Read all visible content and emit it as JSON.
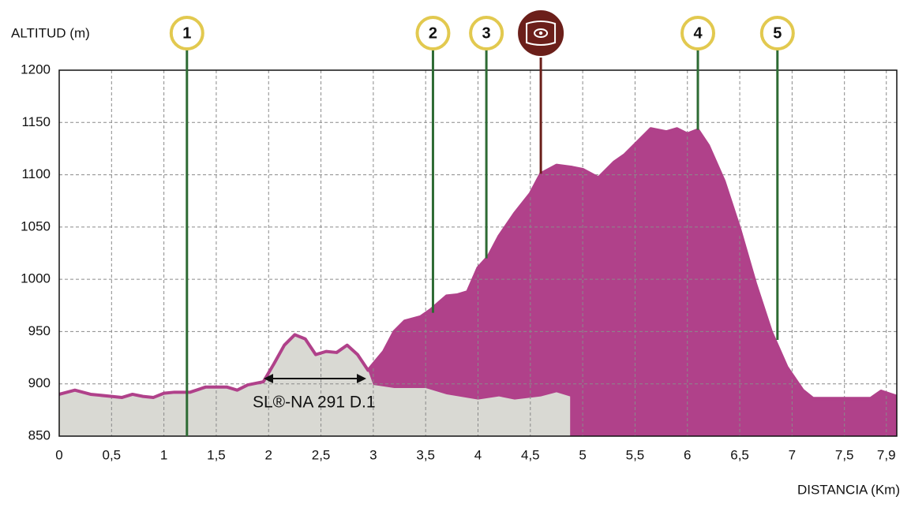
{
  "chart_data": {
    "type": "area",
    "ylabel": "ALTITUD (m)",
    "xlabel": "DISTANCIA (Km)",
    "xlim": [
      0,
      8
    ],
    "ylim": [
      850,
      1200
    ],
    "xticks": [
      0,
      {
        "value": 0.5,
        "label": "0,5"
      },
      1,
      {
        "value": 1.5,
        "label": "1,5"
      },
      2,
      {
        "value": 2.5,
        "label": "2,5"
      },
      3,
      {
        "value": 3.5,
        "label": "3,5"
      },
      4,
      {
        "value": 4.5,
        "label": "4,5"
      },
      5,
      {
        "value": 5.5,
        "label": "5,5"
      },
      6,
      {
        "value": 6.5,
        "label": "6,5"
      },
      7,
      {
        "value": 7.5,
        "label": "7,5"
      },
      {
        "value": 7.9,
        "label": "7,9"
      }
    ],
    "yticks": [
      850,
      900,
      950,
      1000,
      1050,
      1100,
      1150,
      1200
    ],
    "grid": true,
    "series": [
      {
        "color": "#b0418a",
        "x": [
          0,
          0.15,
          0.3,
          0.5,
          0.6,
          0.7,
          0.8,
          0.9,
          1.0,
          1.1,
          1.25,
          1.4,
          1.6,
          1.7,
          1.8,
          1.95,
          2.05,
          2.15,
          2.25,
          2.35,
          2.45,
          2.55,
          2.65,
          2.75,
          2.85,
          2.95,
          3.0,
          3.1,
          3.2,
          3.3,
          3.45,
          3.55,
          3.7,
          3.8,
          3.9,
          4.0,
          4.1,
          4.2,
          4.35,
          4.5,
          4.6,
          4.75,
          4.9,
          5.0,
          5.15,
          5.3,
          5.4,
          5.5,
          5.65,
          5.8,
          5.9,
          6.0,
          6.1,
          6.2,
          6.35,
          6.5,
          6.65,
          6.8,
          6.95,
          7.1,
          7.2,
          7.5,
          7.75,
          7.85,
          8.0
        ],
        "values": [
          890,
          894,
          890,
          888,
          887,
          890,
          888,
          887,
          891,
          892,
          892,
          897,
          897,
          894,
          899,
          902,
          919,
          937,
          947,
          943,
          928,
          931,
          930,
          937,
          928,
          913,
          919,
          931,
          950,
          960,
          964,
          971,
          984,
          985,
          988,
          1011,
          1022,
          1041,
          1063,
          1082,
          1101,
          1109,
          1107,
          1105,
          1097,
          1112,
          1119,
          1129,
          1144,
          1141,
          1144,
          1139,
          1143,
          1128,
          1094,
          1048,
          996,
          950,
          916,
          894,
          886,
          886,
          886,
          893,
          888
        ]
      },
      {
        "name": "SL®-NA 291 D.1",
        "color": "#d9d9d3",
        "x": [
          0,
          0.15,
          0.3,
          0.5,
          0.6,
          0.7,
          0.8,
          0.9,
          1.0,
          1.1,
          1.25,
          1.4,
          1.6,
          1.7,
          1.8,
          1.95,
          2.05,
          2.15,
          2.25,
          2.35,
          2.45,
          2.55,
          2.65,
          2.75,
          2.85,
          2.95,
          3.0,
          3.2,
          3.5,
          3.7,
          4.0,
          4.2,
          4.35,
          4.6,
          4.75,
          4.88
        ],
        "values": [
          890,
          894,
          890,
          888,
          887,
          890,
          888,
          887,
          891,
          892,
          892,
          897,
          897,
          894,
          899,
          902,
          919,
          937,
          947,
          943,
          928,
          931,
          930,
          937,
          928,
          913,
          899,
          896,
          896,
          890,
          885,
          888,
          885,
          888,
          892,
          888
        ]
      }
    ],
    "markers": [
      {
        "label": "1",
        "x": 1.22,
        "value": 850
      },
      {
        "label": "2",
        "x": 3.57,
        "value": 968
      },
      {
        "label": "3",
        "x": 4.08,
        "value": 1020
      },
      {
        "label": null,
        "x": 4.6,
        "value": 1101
      },
      {
        "label": "4",
        "x": 6.1,
        "value": 1143
      },
      {
        "label": "5",
        "x": 6.86,
        "value": 942
      }
    ]
  }
}
